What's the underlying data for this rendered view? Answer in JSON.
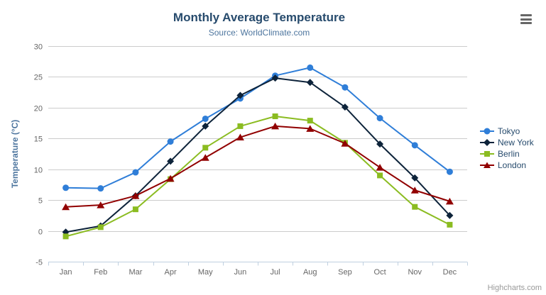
{
  "header": {
    "title": "Monthly Average Temperature",
    "subtitle": "Source: WorldClimate.com"
  },
  "credits": "Highcharts.com",
  "colors": {
    "title": "#274b6d",
    "subtitle": "#4d759e",
    "axis_title": "#4d759e",
    "axis_labels": "#666666",
    "gridline": "#cccccc",
    "axis_line": "#c0d0e0",
    "legend_text": "#274b6d",
    "menu_icon": "#666666"
  },
  "chart_data": {
    "type": "line",
    "title": "Monthly Average Temperature",
    "subtitle": "Source: WorldClimate.com",
    "xlabel": "",
    "ylabel": "Temperature (°C)",
    "ylim": [
      -5,
      30
    ],
    "yticks": [
      30,
      25,
      20,
      15,
      10,
      5,
      0,
      -5
    ],
    "grid": true,
    "legend_position": "right",
    "categories": [
      "Jan",
      "Feb",
      "Mar",
      "Apr",
      "May",
      "Jun",
      "Jul",
      "Aug",
      "Sep",
      "Oct",
      "Nov",
      "Dec"
    ],
    "series": [
      {
        "name": "Tokyo",
        "color": "#2f7ed8",
        "marker": "circle",
        "values": [
          7.0,
          6.9,
          9.5,
          14.5,
          18.2,
          21.5,
          25.2,
          26.5,
          23.3,
          18.3,
          13.9,
          9.6
        ]
      },
      {
        "name": "New York",
        "color": "#0d233a",
        "marker": "diamond",
        "values": [
          -0.2,
          0.8,
          5.7,
          11.3,
          17.0,
          22.0,
          24.8,
          24.1,
          20.1,
          14.1,
          8.6,
          2.5
        ]
      },
      {
        "name": "Berlin",
        "color": "#8bbc21",
        "marker": "square",
        "values": [
          -0.9,
          0.6,
          3.5,
          8.4,
          13.5,
          17.0,
          18.6,
          17.9,
          14.3,
          9.0,
          3.9,
          1.0
        ]
      },
      {
        "name": "London",
        "color": "#910000",
        "marker": "triangle",
        "values": [
          3.9,
          4.2,
          5.7,
          8.5,
          11.9,
          15.2,
          17.0,
          16.6,
          14.2,
          10.3,
          6.6,
          4.8
        ]
      }
    ]
  }
}
